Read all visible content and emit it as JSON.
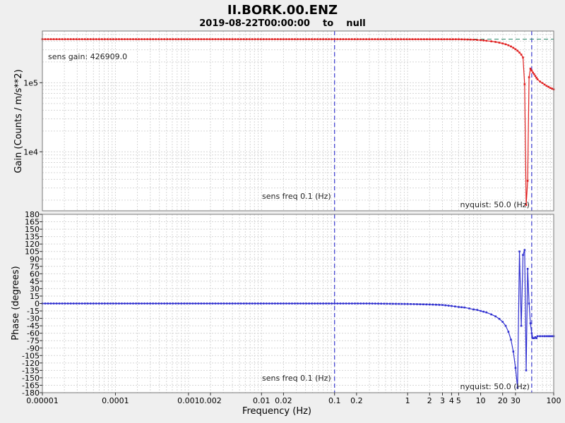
{
  "title": "II.BORK.00.ENZ",
  "subtitle": "2019-08-22T00:00:00    to    null",
  "chart_data": [
    {
      "name": "gain",
      "type": "line",
      "ylabel": "Gain (Counts / m/s**2)",
      "yscale": "log",
      "ylim": [
        1400,
        560000
      ],
      "ytick_labels": [
        "1e5",
        "1e4"
      ],
      "ytick_values": [
        100000,
        10000
      ],
      "annotations": {
        "sens_gain": "sens gain: 426909.0",
        "sens_freq": "sens freq 0.1 (Hz)",
        "nyquist": "nyquist: 50.0 (Hz)"
      },
      "reference_lines": {
        "sens_freq_hz": 0.1,
        "nyquist_hz": 50.0,
        "sens_gain": 426909.0
      },
      "series": [
        {
          "color": "#e02020",
          "x": [
            1e-05,
            0.1,
            5,
            8,
            10,
            12,
            14,
            16,
            18,
            20,
            22,
            24,
            26,
            28,
            30,
            32,
            34,
            36,
            38,
            40,
            42,
            44,
            46,
            48,
            50,
            52,
            54,
            56,
            58,
            60,
            65,
            70,
            75,
            80,
            85,
            90,
            95,
            100
          ],
          "y": [
            426909,
            426909,
            426000,
            420000,
            413000,
            405000,
            397000,
            389000,
            380000,
            370000,
            360000,
            348000,
            335000,
            320000,
            305000,
            290000,
            273000,
            255000,
            232000,
            95000,
            1700,
            3800,
            120000,
            160000,
            150000,
            140000,
            133000,
            125000,
            118000,
            112000,
            104000,
            99000,
            94000,
            90000,
            87000,
            84000,
            82000,
            80000
          ]
        }
      ]
    },
    {
      "name": "phase",
      "type": "line",
      "ylabel": "Phase (degrees)",
      "xlabel": "Frequency (Hz)",
      "xscale": "log",
      "xlim": [
        1e-05,
        100
      ],
      "ylim": [
        -180,
        180
      ],
      "ytick_labels": [
        "180",
        "165",
        "150",
        "135",
        "120",
        "105",
        "90",
        "75",
        "60",
        "45",
        "30",
        "15",
        "0",
        "-15",
        "-30",
        "-45",
        "-60",
        "-75",
        "-90",
        "-105",
        "-120",
        "-135",
        "-150",
        "-165",
        "-180"
      ],
      "xtick_labels": [
        "0.00001",
        "0.0001",
        "0.001",
        "0.002",
        "0.01",
        "0.02",
        "0.1",
        "0.2",
        "1",
        "2",
        "3",
        "4",
        "5",
        "10",
        "20",
        "30",
        "100"
      ],
      "xtick_values": [
        1e-05,
        0.0001,
        0.001,
        0.002,
        0.01,
        0.02,
        0.1,
        0.2,
        1,
        2,
        3,
        4,
        5,
        10,
        20,
        30,
        100
      ],
      "annotations": {
        "sens_freq": "sens freq 0.1 (Hz)",
        "nyquist": "nyquist: 50.0 (Hz)"
      },
      "reference_lines": {
        "sens_freq_hz": 0.1,
        "nyquist_hz": 50.0
      },
      "series": [
        {
          "color": "#3030d0",
          "x": [
            1e-05,
            0.1,
            0.3,
            1,
            2,
            3,
            4,
            5,
            6,
            7,
            8,
            9,
            10,
            12,
            14,
            16,
            18,
            20,
            22,
            24,
            26,
            28,
            30,
            32,
            34,
            36,
            38,
            40,
            42,
            44,
            46,
            48,
            50,
            52,
            54,
            56,
            58,
            60,
            65,
            70,
            75,
            80,
            85,
            90,
            95,
            100
          ],
          "y": [
            0,
            0,
            0,
            -1,
            -2,
            -3,
            -5,
            -7,
            -8,
            -10,
            -12,
            -13,
            -15,
            -18,
            -22,
            -26,
            -31,
            -37,
            -45,
            -57,
            -73,
            -97,
            -130,
            -170,
            105,
            -45,
            98,
            108,
            -135,
            70,
            0,
            -40,
            -60,
            -70,
            -70,
            -68,
            -70,
            -66,
            -66,
            -66,
            -66,
            -66,
            -66,
            -66,
            -66,
            -66
          ]
        }
      ]
    }
  ]
}
